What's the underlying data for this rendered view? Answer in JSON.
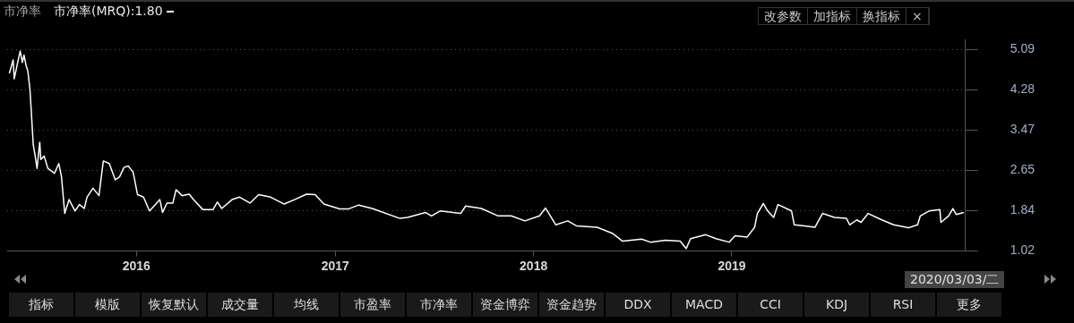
{
  "chart_data": {
    "type": "line",
    "title": "市净率",
    "legend": "top left",
    "grid": "y",
    "marker": "none",
    "line_style": "solid",
    "xlim": [
      "2015-05-08",
      "2020-03-06"
    ],
    "xticks": [
      "2016",
      "2017",
      "2018",
      "2019"
    ],
    "ylim": [
      1.02,
      5.29
    ],
    "yticks": [
      1.02,
      1.84,
      2.65,
      3.47,
      4.28,
      5.09
    ],
    "annotations": [
      "2020/03/03/二",
      "改参数",
      "加指标",
      "换指标",
      "×",
      "指标",
      "模版",
      "恢复默认",
      "成交量",
      "均线",
      "市盈率",
      "市净率",
      "资金博弈",
      "资金趋势",
      "DDX",
      "MACD",
      "CCI",
      "KDJ",
      "RSI",
      "更多"
    ],
    "series": [
      {
        "name": "市净率(MRQ):1.80",
        "color": "#ffffff",
        "x": [
          "2015-05-12",
          "2015-05-19",
          "2015-05-21",
          "2015-05-27",
          "2015-06-01",
          "2015-06-05",
          "2015-06-08",
          "2015-06-12",
          "2015-06-15",
          "2015-06-19",
          "2015-06-21",
          "2015-06-25",
          "2015-06-29",
          "2015-07-02",
          "2015-07-07",
          "2015-07-09",
          "2015-07-15",
          "2015-07-22",
          "2015-08-03",
          "2015-08-11",
          "2015-08-16",
          "2015-08-22",
          "2015-08-30",
          "2015-09-10",
          "2015-09-18",
          "2015-09-27",
          "2015-10-02",
          "2015-10-13",
          "2015-10-24",
          "2015-11-01",
          "2015-11-12",
          "2015-11-23",
          "2015-12-01",
          "2015-12-09",
          "2015-12-17",
          "2015-12-26",
          "2016-01-03",
          "2016-01-14",
          "2016-01-25",
          "2016-02-05",
          "2016-02-13",
          "2016-02-18",
          "2016-02-26",
          "2016-03-08",
          "2016-03-14",
          "2016-03-25",
          "2016-04-07",
          "2016-04-15",
          "2016-05-02",
          "2016-05-21",
          "2016-05-29",
          "2016-06-06",
          "2016-06-25",
          "2016-07-09",
          "2016-07-28",
          "2016-08-13",
          "2016-09-04",
          "2016-09-29",
          "2016-10-18",
          "2016-11-09",
          "2016-11-25",
          "2016-12-11",
          "2017-01-09",
          "2017-01-25",
          "2017-02-13",
          "2017-03-10",
          "2017-04-30",
          "2017-05-14",
          "2017-06-16",
          "2017-06-27",
          "2017-07-13",
          "2017-08-20",
          "2017-08-29",
          "2017-09-27",
          "2017-10-28",
          "2017-11-21",
          "2017-12-16",
          "2018-01-12",
          "2018-01-23",
          "2018-02-11",
          "2018-03-05",
          "2018-03-21",
          "2018-04-28",
          "2018-05-26",
          "2018-06-14",
          "2018-07-19",
          "2018-08-04",
          "2018-09-01",
          "2018-09-28",
          "2018-10-09",
          "2018-10-17",
          "2018-11-14",
          "2018-12-03",
          "2018-12-27",
          "2019-01-07",
          "2019-01-29",
          "2019-02-12",
          "2019-02-17",
          "2019-02-28",
          "2019-03-08",
          "2019-03-19",
          "2019-03-27",
          "2019-04-21",
          "2019-04-26",
          "2019-05-15",
          "2019-06-03",
          "2019-06-17",
          "2019-07-09",
          "2019-07-31",
          "2019-08-06",
          "2019-08-19",
          "2019-08-27",
          "2019-09-09",
          "2019-10-04",
          "2019-10-26",
          "2019-11-22",
          "2019-12-09",
          "2019-12-14",
          "2019-12-30",
          "2020-01-19",
          "2020-01-21",
          "2020-02-04",
          "2020-02-12",
          "2020-02-18",
          "2020-03-03"
        ],
        "values": [
          4.61,
          4.88,
          4.5,
          4.81,
          5.06,
          4.83,
          4.98,
          4.76,
          4.66,
          4.28,
          3.92,
          3.17,
          2.91,
          2.69,
          3.22,
          2.87,
          2.94,
          2.69,
          2.59,
          2.79,
          2.52,
          1.78,
          2.06,
          1.83,
          1.96,
          1.88,
          2.11,
          2.29,
          2.14,
          2.84,
          2.79,
          2.46,
          2.52,
          2.71,
          2.74,
          2.61,
          2.16,
          2.11,
          1.83,
          1.96,
          2.06,
          1.8,
          1.99,
          1.99,
          2.26,
          2.14,
          2.17,
          2.06,
          1.86,
          1.86,
          2.01,
          1.88,
          2.06,
          2.11,
          1.99,
          2.16,
          2.11,
          1.97,
          2.06,
          2.17,
          2.16,
          1.97,
          1.87,
          1.87,
          1.95,
          1.88,
          1.68,
          1.7,
          1.8,
          1.73,
          1.83,
          1.78,
          1.93,
          1.88,
          1.73,
          1.73,
          1.63,
          1.73,
          1.89,
          1.55,
          1.63,
          1.53,
          1.5,
          1.38,
          1.22,
          1.26,
          1.2,
          1.24,
          1.22,
          1.07,
          1.27,
          1.35,
          1.27,
          1.2,
          1.33,
          1.3,
          1.5,
          1.78,
          1.98,
          1.83,
          1.7,
          1.96,
          1.83,
          1.55,
          1.53,
          1.5,
          1.78,
          1.7,
          1.68,
          1.55,
          1.65,
          1.6,
          1.78,
          1.65,
          1.55,
          1.49,
          1.55,
          1.73,
          1.83,
          1.86,
          1.6,
          1.73,
          1.88,
          1.76,
          1.8
        ]
      }
    ]
  }
}
